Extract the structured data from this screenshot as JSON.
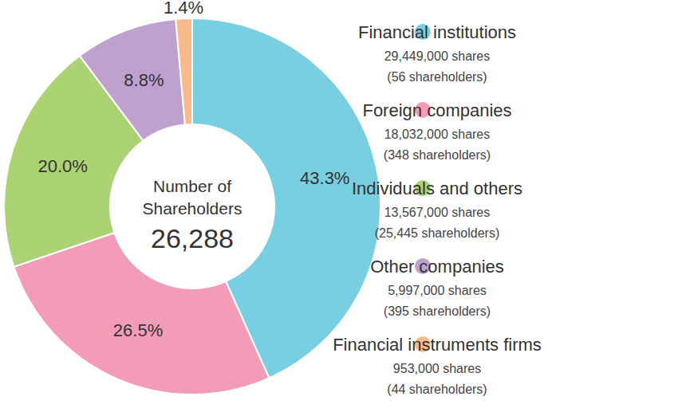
{
  "chart_data": {
    "type": "pie",
    "categories": [
      "Financial institutions",
      "Foreign companies",
      "Individuals and others",
      "Other companies",
      "Financial instruments firms"
    ],
    "values": [
      43.3,
      26.5,
      20.0,
      8.8,
      1.4
    ],
    "value_labels": [
      "43.3%",
      "26.5%",
      "20.0%",
      "8.8%",
      "1.4%"
    ],
    "colors": [
      "#77cfe1",
      "#f39cb7",
      "#acd373",
      "#bea1cf",
      "#f8ba8b"
    ],
    "shares": [
      "29,449,000 shares",
      "18,032,000 shares",
      "13,567,000 shares",
      "5,997,000 shares",
      "953,000 shares"
    ],
    "shareholders": [
      "(56 shareholders)",
      "(348 shareholders)",
      "(25,445 shareholders)",
      "(395 shareholders)",
      "(44 shareholders)"
    ],
    "center_title": [
      "Number of",
      "Shareholders"
    ],
    "center_value": {
      "value": 26288,
      "label": "26,288"
    },
    "data_labels": true,
    "legend": "right"
  }
}
